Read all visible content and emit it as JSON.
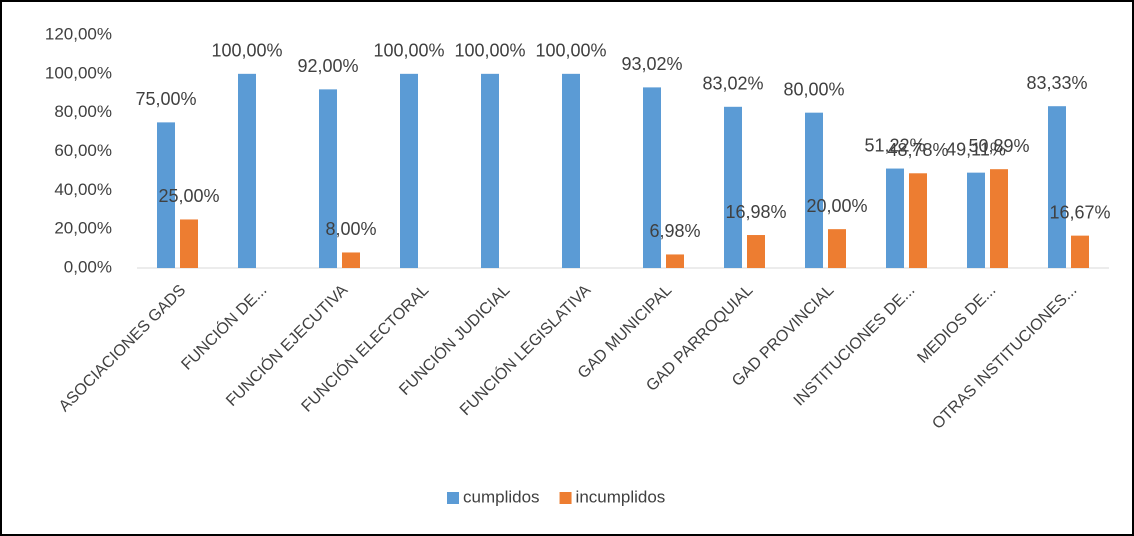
{
  "chart_data": {
    "type": "bar",
    "categories": [
      "ASOCIACIONES GADS",
      "FUNCIÓN DE...",
      "FUNCIÓN EJECUTIVA",
      "FUNCIÓN ELECTORAL",
      "FUNCIÓN JUDICIAL",
      "FUNCIÓN LEGISLATIVA",
      "GAD MUNICIPAL",
      "GAD PARROQUIAL",
      "GAD PROVINCIAL",
      "INSTITUCIONES DE...",
      "MEDIOS DE...",
      "OTRAS INSTITUCIONES..."
    ],
    "series": [
      {
        "name": "cumplidos",
        "color": "#5b9bd5",
        "values": [
          75,
          100,
          92,
          100,
          100,
          100,
          93.02,
          83.02,
          80,
          51.22,
          49.11,
          83.33
        ],
        "value_labels": [
          "75,00%",
          "100,00%",
          "92,00%",
          "100,00%",
          "100,00%",
          "100,00%",
          "93,02%",
          "83,02%",
          "80,00%",
          "51,22%",
          "49,11%",
          "83,33%"
        ]
      },
      {
        "name": "incumplidos",
        "color": "#ed7d31",
        "values": [
          25,
          0,
          8,
          0,
          0,
          0,
          6.98,
          16.98,
          20,
          48.78,
          50.89,
          16.67
        ],
        "value_labels": [
          "25,00%",
          null,
          "8,00%",
          null,
          null,
          null,
          "6,98%",
          "16,98%",
          "20,00%",
          "48,78%",
          "50,89%",
          "16,67%"
        ]
      }
    ],
    "ylim": [
      0,
      120
    ],
    "yticks": [
      {
        "value": 0,
        "label": "0,00%"
      },
      {
        "value": 20,
        "label": "20,00%"
      },
      {
        "value": 40,
        "label": "40,00%"
      },
      {
        "value": 60,
        "label": "60,00%"
      },
      {
        "value": 80,
        "label": "80,00%"
      },
      {
        "value": 100,
        "label": "100,00%"
      },
      {
        "value": 120,
        "label": "120,00%"
      }
    ],
    "grid": false,
    "legend": "bottom"
  }
}
